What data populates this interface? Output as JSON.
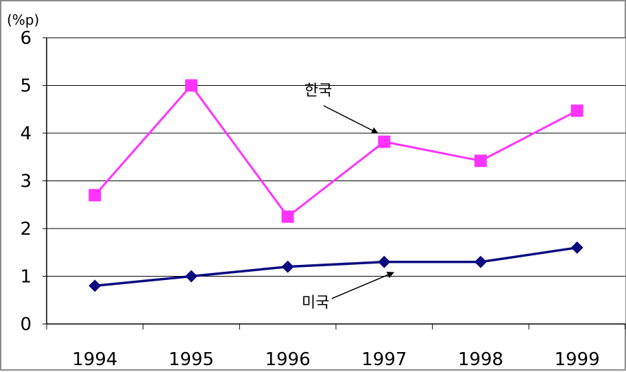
{
  "chart_data": {
    "type": "line",
    "title": "",
    "ylabel": "(%p)",
    "xlabel": "",
    "categories": [
      "1994",
      "1995",
      "1996",
      "1997",
      "1998",
      "1999"
    ],
    "ylim": [
      0,
      6
    ],
    "yticks": [
      "0",
      "1",
      "2",
      "3",
      "4",
      "5",
      "6"
    ],
    "grid": true,
    "series": [
      {
        "name": "한국",
        "values": [
          2.7,
          5.0,
          2.25,
          3.82,
          3.42,
          4.47
        ],
        "color": "#ff33ff",
        "marker": "square"
      },
      {
        "name": "미국",
        "values": [
          0.8,
          1.0,
          1.2,
          1.3,
          1.3,
          1.6
        ],
        "color": "#0a0a80",
        "marker": "diamond"
      }
    ],
    "annotations": [
      {
        "text": "한국",
        "series": 0,
        "points_to": "1997"
      },
      {
        "text": "미국",
        "series": 1,
        "points_to": "1997"
      }
    ]
  }
}
